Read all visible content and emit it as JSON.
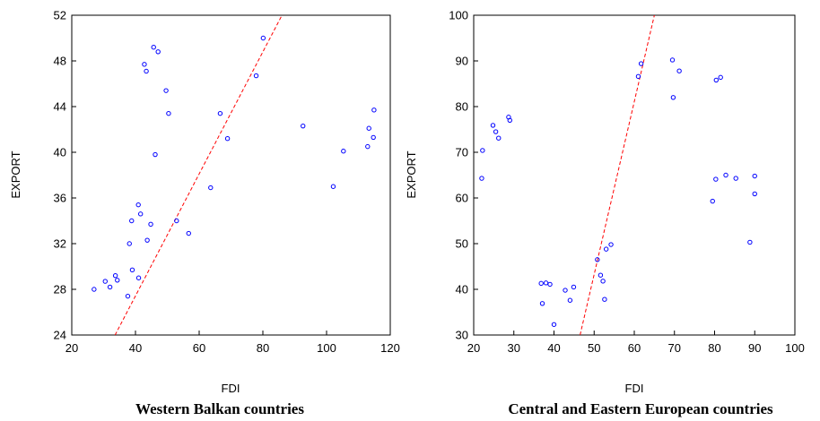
{
  "chart_data": [
    {
      "type": "scatter",
      "caption": "Western Balkan countries",
      "xlabel": "FDI",
      "ylabel": "EXPORT",
      "xlim": [
        20,
        120
      ],
      "ylim": [
        24,
        52
      ],
      "xticks": [
        "20",
        "40",
        "60",
        "80",
        "100",
        "120"
      ],
      "yticks": [
        "24",
        "28",
        "32",
        "36",
        "40",
        "44",
        "48",
        "52"
      ],
      "grid": false,
      "marker_color": "#0000ff",
      "fit_color": "#ff0000",
      "points": [
        [
          27,
          28.0
        ],
        [
          30.5,
          28.7
        ],
        [
          32,
          28.2
        ],
        [
          33.7,
          29.2
        ],
        [
          34.3,
          28.8
        ],
        [
          37.6,
          27.4
        ],
        [
          38.1,
          32.0
        ],
        [
          38.8,
          34.0
        ],
        [
          39.0,
          29.7
        ],
        [
          41.0,
          29.0
        ],
        [
          40.9,
          35.4
        ],
        [
          41.6,
          34.6
        ],
        [
          42.8,
          47.7
        ],
        [
          43.4,
          47.1
        ],
        [
          43.7,
          32.3
        ],
        [
          44.8,
          33.7
        ],
        [
          45.7,
          49.2
        ],
        [
          47.1,
          48.8
        ],
        [
          46.2,
          39.8
        ],
        [
          49.6,
          45.4
        ],
        [
          50.4,
          43.4
        ],
        [
          52.9,
          34.0
        ],
        [
          56.7,
          32.9
        ],
        [
          63.6,
          36.9
        ],
        [
          66.6,
          43.4
        ],
        [
          68.9,
          41.2
        ],
        [
          77.9,
          46.7
        ],
        [
          80.1,
          50.0
        ],
        [
          92.6,
          42.3
        ],
        [
          102.1,
          37.0
        ],
        [
          105.3,
          40.1
        ],
        [
          112.9,
          40.5
        ],
        [
          113.3,
          42.1
        ],
        [
          114.7,
          41.3
        ],
        [
          114.9,
          43.7
        ]
      ],
      "fit_line": [
        [
          33.6,
          24
        ],
        [
          86,
          52
        ]
      ]
    },
    {
      "type": "scatter",
      "caption": "Central and Eastern European countries",
      "xlabel": "FDI",
      "ylabel": "EXPORT",
      "xlim": [
        20,
        100
      ],
      "ylim": [
        30,
        100
      ],
      "xticks": [
        "20",
        "30",
        "40",
        "50",
        "60",
        "70",
        "80",
        "90",
        "100"
      ],
      "yticks": [
        "30",
        "40",
        "50",
        "60",
        "70",
        "80",
        "90",
        "100"
      ],
      "grid": false,
      "marker_color": "#0000ff",
      "fit_color": "#ff0000",
      "points": [
        [
          22.0,
          64.3
        ],
        [
          22.2,
          70.4
        ],
        [
          24.8,
          75.9
        ],
        [
          25.5,
          74.5
        ],
        [
          26.2,
          73.1
        ],
        [
          28.7,
          77.7
        ],
        [
          29.0,
          77.0
        ],
        [
          36.8,
          41.3
        ],
        [
          37.1,
          36.9
        ],
        [
          38.0,
          41.4
        ],
        [
          39.0,
          41.1
        ],
        [
          40.0,
          32.3
        ],
        [
          42.8,
          39.8
        ],
        [
          44.0,
          37.6
        ],
        [
          44.9,
          40.5
        ],
        [
          50.8,
          46.5
        ],
        [
          51.6,
          43.1
        ],
        [
          52.2,
          41.8
        ],
        [
          52.6,
          37.8
        ],
        [
          53.0,
          48.8
        ],
        [
          54.2,
          49.8
        ],
        [
          61.0,
          86.6
        ],
        [
          61.7,
          89.4
        ],
        [
          69.5,
          90.2
        ],
        [
          69.7,
          82.0
        ],
        [
          71.2,
          87.8
        ],
        [
          79.5,
          59.3
        ],
        [
          80.3,
          64.1
        ],
        [
          80.4,
          85.8
        ],
        [
          81.5,
          86.4
        ],
        [
          82.8,
          65.0
        ],
        [
          85.3,
          64.3
        ],
        [
          88.8,
          50.3
        ],
        [
          90.0,
          64.8
        ],
        [
          90.0,
          60.9
        ]
      ],
      "fit_line": [
        [
          46.5,
          30
        ],
        [
          65,
          100
        ]
      ]
    }
  ]
}
